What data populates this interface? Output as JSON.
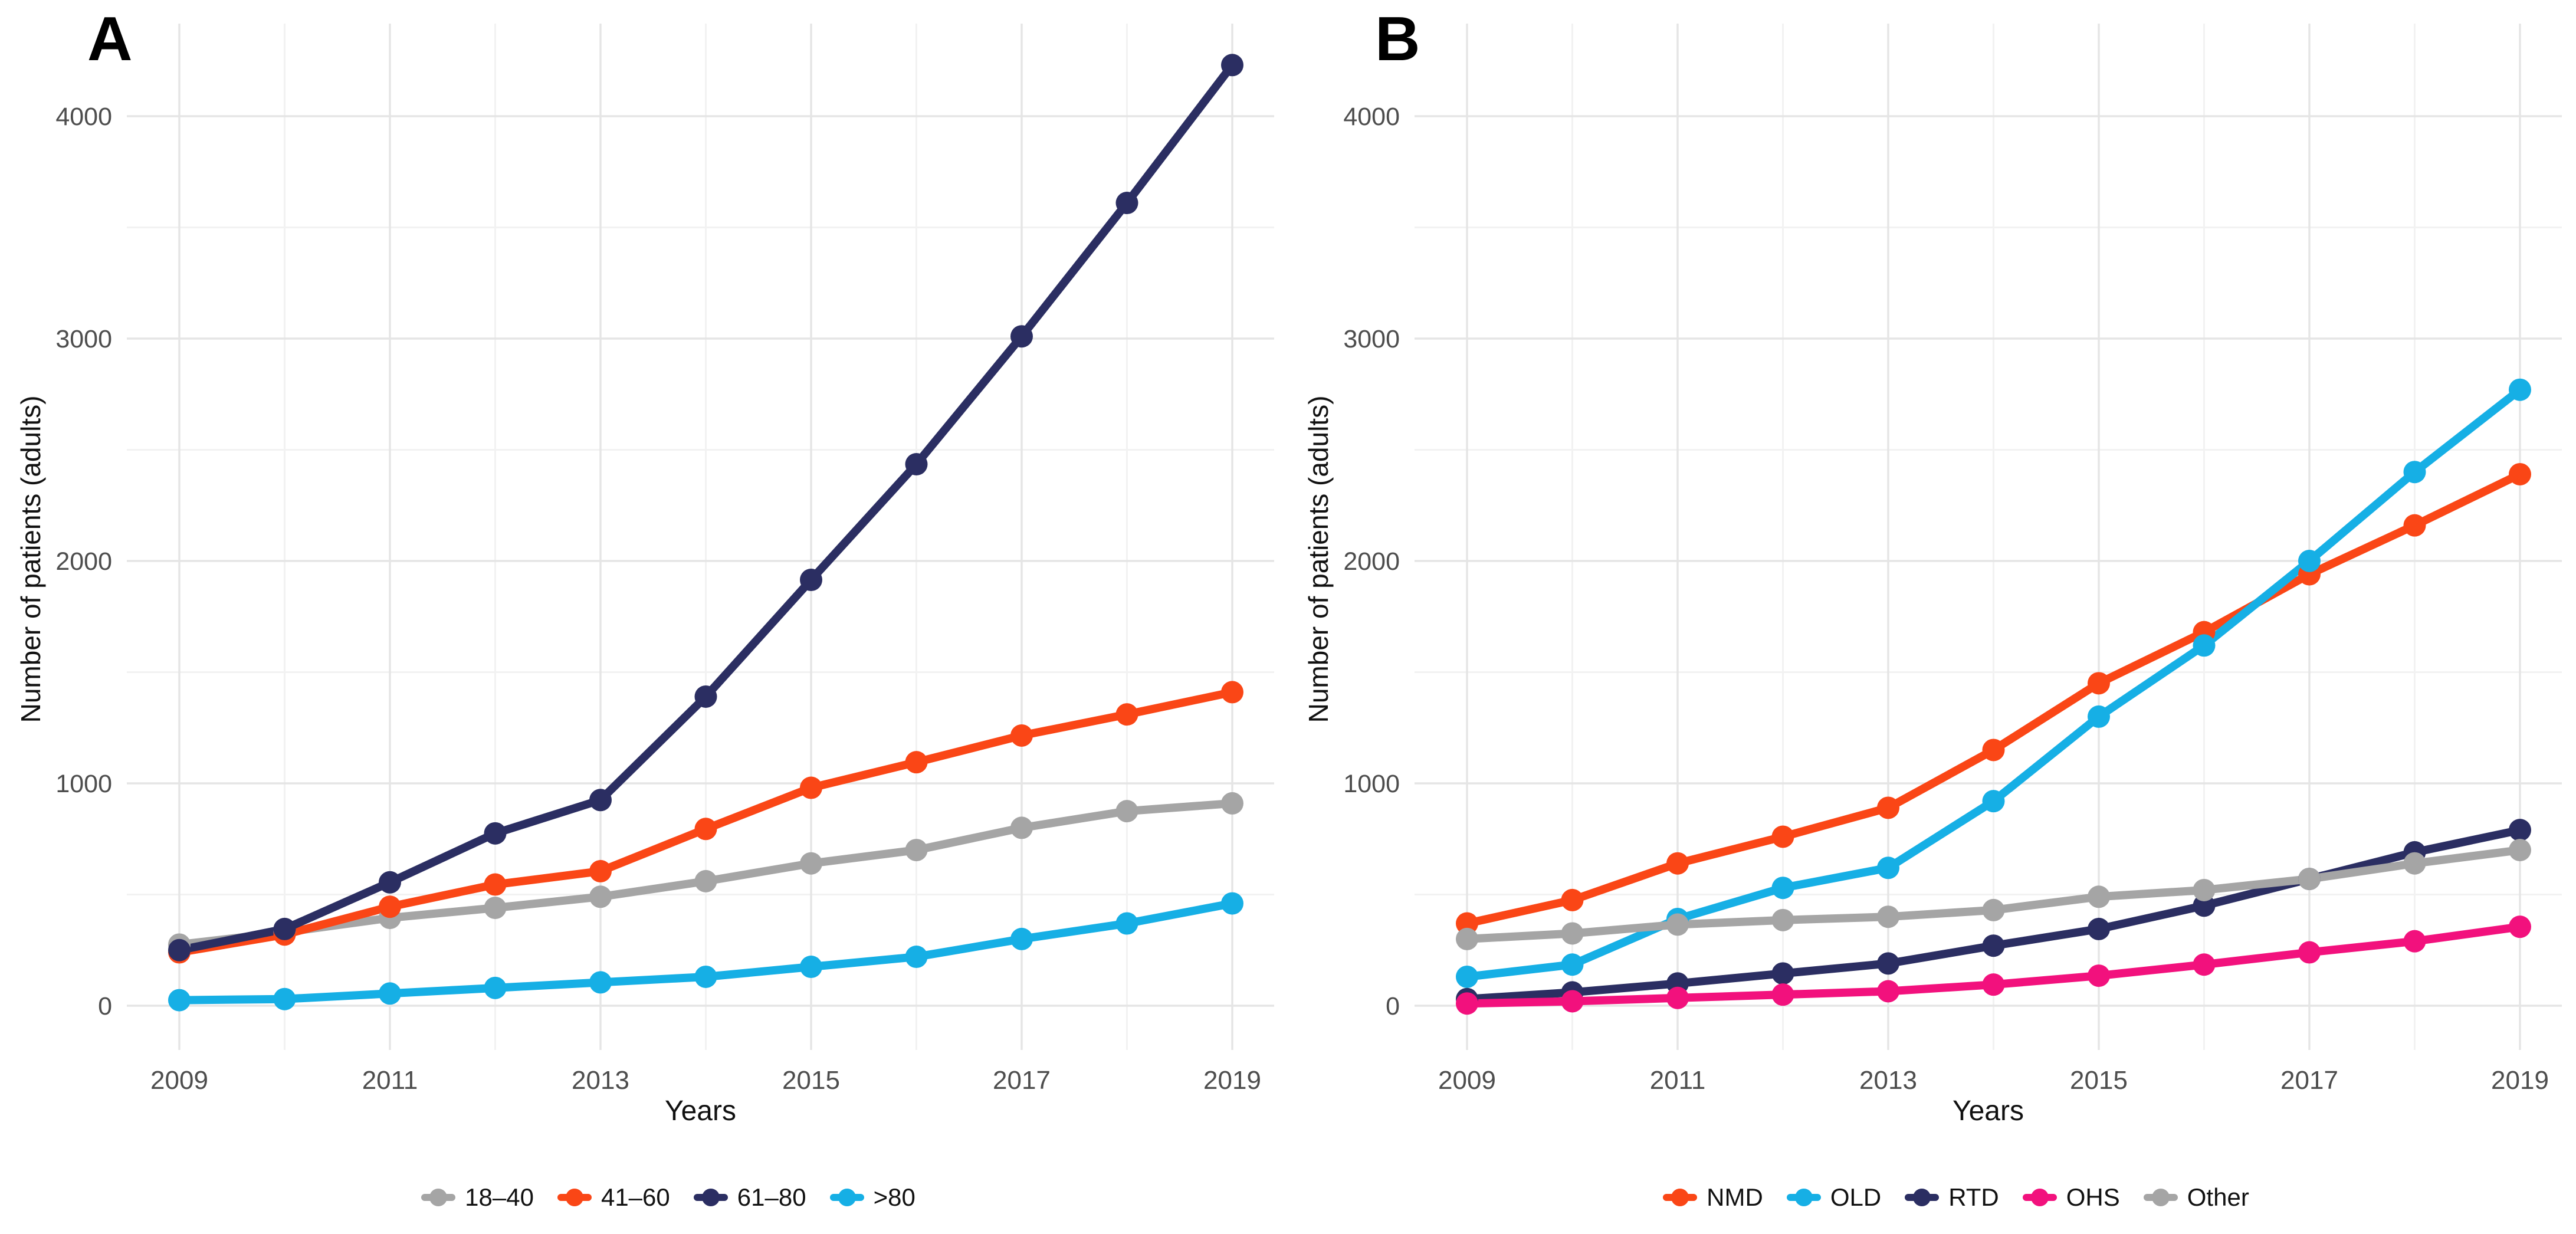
{
  "figure": {
    "background": "#FFFFFF",
    "grid_major_color": "#E5E5E5",
    "grid_minor_color": "#F2F2F2",
    "tick_label_color": "#4D4D4D",
    "axis_title_color": "#111111",
    "legend_text_color": "#111111",
    "panel_label_color": "#000000"
  },
  "chart_data": [
    {
      "type": "line",
      "panel_label": "A",
      "xlabel": "Years",
      "ylabel": "Number of patients (adults)",
      "x": [
        2009,
        2010,
        2011,
        2012,
        2013,
        2014,
        2015,
        2016,
        2017,
        2018,
        2019
      ],
      "xticks": [
        2009,
        2011,
        2013,
        2015,
        2017,
        2019
      ],
      "yticks": [
        0,
        1000,
        2000,
        3000,
        4000
      ],
      "ylim": [
        0,
        4420
      ],
      "grid": true,
      "legend_position": "bottom",
      "series": [
        {
          "name": "18–40",
          "color": "#A5A5A5",
          "values": [
            275,
            330,
            395,
            440,
            490,
            560,
            640,
            700,
            800,
            875,
            910
          ]
        },
        {
          "name": "41–60",
          "color": "#FA4616",
          "values": [
            240,
            320,
            445,
            545,
            605,
            795,
            980,
            1095,
            1215,
            1310,
            1410
          ]
        },
        {
          "name": "61–80",
          "color": "#2B2E62",
          "values": [
            250,
            345,
            555,
            775,
            925,
            1390,
            1915,
            2435,
            3010,
            3610,
            4230
          ]
        },
        {
          "name": ">80",
          "color": "#16AFE5",
          "values": [
            25,
            30,
            55,
            80,
            105,
            130,
            175,
            220,
            300,
            370,
            460
          ]
        }
      ]
    },
    {
      "type": "line",
      "panel_label": "B",
      "xlabel": "Years",
      "ylabel": "Number of patients (adults)",
      "x": [
        2009,
        2010,
        2011,
        2012,
        2013,
        2014,
        2015,
        2016,
        2017,
        2018,
        2019
      ],
      "xticks": [
        2009,
        2011,
        2013,
        2015,
        2017,
        2019
      ],
      "yticks": [
        0,
        1000,
        2000,
        3000,
        4000
      ],
      "ylim": [
        0,
        4420
      ],
      "grid": true,
      "legend_position": "bottom",
      "series": [
        {
          "name": "NMD",
          "color": "#FA4616",
          "values": [
            370,
            475,
            640,
            760,
            890,
            1150,
            1450,
            1680,
            1940,
            2160,
            2390
          ]
        },
        {
          "name": "OLD",
          "color": "#16AFE5",
          "values": [
            130,
            185,
            390,
            530,
            620,
            920,
            1300,
            1620,
            2000,
            2400,
            2770
          ]
        },
        {
          "name": "RTD",
          "color": "#2B2E62",
          "values": [
            30,
            60,
            100,
            145,
            190,
            270,
            345,
            450,
            570,
            690,
            790
          ]
        },
        {
          "name": "OHS",
          "color": "#F2117D",
          "values": [
            10,
            20,
            35,
            50,
            65,
            95,
            135,
            185,
            240,
            290,
            355
          ]
        },
        {
          "name": "Other",
          "color": "#A5A5A5",
          "values": [
            300,
            325,
            365,
            385,
            400,
            430,
            490,
            520,
            570,
            640,
            700
          ]
        }
      ]
    }
  ]
}
